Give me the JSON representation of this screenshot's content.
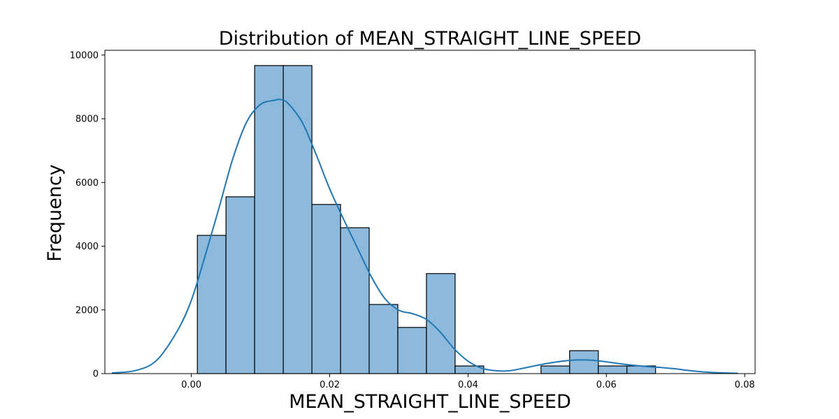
{
  "chart_data": {
    "type": "bar",
    "title": "Distribution of MEAN_STRAIGHT_LINE_SPEED",
    "xlabel": "MEAN_STRAIGHT_LINE_SPEED",
    "ylabel": "Frequency",
    "xlim": [
      -0.0125,
      0.0815
    ],
    "ylim": [
      0,
      10150
    ],
    "xticks": [
      0.0,
      0.02,
      0.04,
      0.06,
      0.08
    ],
    "xtick_labels": [
      "0.00",
      "0.02",
      "0.04",
      "0.06",
      "0.08"
    ],
    "yticks": [
      0,
      2000,
      4000,
      6000,
      8000,
      10000
    ],
    "ytick_labels": [
      "0",
      "2000",
      "4000",
      "6000",
      "8000",
      "10000"
    ],
    "bin_edges": [
      0.00087,
      0.00501,
      0.00915,
      0.01329,
      0.01743,
      0.02157,
      0.02571,
      0.02985,
      0.03399,
      0.03813,
      0.04227,
      0.04641,
      0.05055,
      0.05469,
      0.05883,
      0.06297,
      0.06711
    ],
    "values": [
      4340,
      5550,
      9670,
      9670,
      5310,
      4580,
      2170,
      1450,
      3140,
      240,
      0,
      0,
      240,
      720,
      240,
      240
    ],
    "kde": {
      "x": [
        -0.0115,
        -0.008,
        -0.005,
        -0.002,
        0.0,
        0.002,
        0.004,
        0.006,
        0.008,
        0.01,
        0.012,
        0.013,
        0.014,
        0.016,
        0.018,
        0.02,
        0.022,
        0.024,
        0.026,
        0.028,
        0.03,
        0.032,
        0.034,
        0.036,
        0.038,
        0.04,
        0.042,
        0.044,
        0.046,
        0.048,
        0.05,
        0.052,
        0.054,
        0.056,
        0.058,
        0.06,
        0.062,
        0.064,
        0.066,
        0.068,
        0.07,
        0.072,
        0.075,
        0.079
      ],
      "y": [
        20,
        100,
        420,
        1350,
        2300,
        3700,
        5200,
        6750,
        7900,
        8450,
        8580,
        8600,
        8480,
        7900,
        6900,
        5800,
        4850,
        3950,
        3050,
        2350,
        1990,
        1880,
        1700,
        1300,
        780,
        390,
        170,
        90,
        90,
        170,
        260,
        340,
        400,
        430,
        420,
        370,
        310,
        260,
        220,
        190,
        150,
        95,
        40,
        10
      ]
    },
    "colors": {
      "bar_fill": "#8dbadc",
      "bar_edge": "#000000",
      "kde_line": "#1f77b4"
    },
    "grid": false,
    "legend": "none"
  }
}
